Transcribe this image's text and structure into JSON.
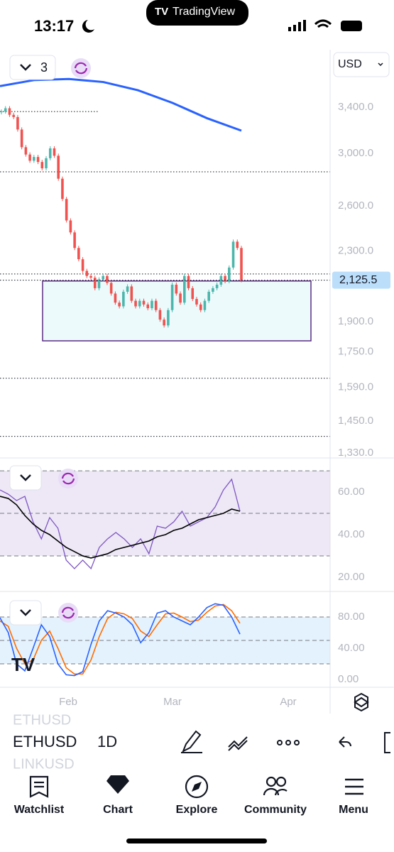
{
  "status_bar": {
    "time": "13:17"
  },
  "header": {
    "brand": "TradingView"
  },
  "controls": {
    "indicator_count": "3",
    "currency": "USD"
  },
  "main_chart": {
    "type": "candlestick",
    "yscale": "log",
    "ylim": [
      1312,
      3974
    ],
    "yticks": [
      {
        "value": 3400,
        "label": "3,400.0"
      },
      {
        "value": 3000,
        "label": "3,000.0"
      },
      {
        "value": 2600,
        "label": "2,600.0"
      },
      {
        "value": 2300,
        "label": "2,300.0"
      },
      {
        "value": 1900,
        "label": "1,900.0"
      },
      {
        "value": 1750,
        "label": "1,750.0"
      },
      {
        "value": 1590,
        "label": "1,590.0"
      },
      {
        "value": 1450,
        "label": "1,450.0"
      },
      {
        "value": 1330,
        "label": "1,330.0"
      }
    ],
    "last_price": {
      "value": 2125.5,
      "label": "2,125.5"
    },
    "up_color": "#4db6ac",
    "down_color": "#ef5350",
    "closes": [
      3360,
      3390,
      3330,
      3310,
      3200,
      3050,
      2990,
      2940,
      2970,
      2930,
      2880,
      2960,
      3040,
      2980,
      2800,
      2650,
      2500,
      2420,
      2320,
      2250,
      2180,
      2150,
      2140,
      2080,
      2130,
      2150,
      2110,
      2050,
      2000,
      1980,
      2060,
      2090,
      2010,
      1980,
      2010,
      1990,
      1970,
      2010,
      1960,
      1910,
      1880,
      1960,
      2100,
      2050,
      2000,
      2150,
      2080,
      2020,
      1990,
      1960,
      2010,
      2060,
      2080,
      2100,
      2150,
      2120,
      2200,
      2360,
      2320,
      2125.5
    ],
    "ma": {
      "color": "#2962ff",
      "values": [
        3600,
        3660,
        3670,
        3640,
        3560,
        3440,
        3300,
        3190
      ]
    },
    "levels": [
      3360,
      2853,
      2162,
      1629,
      1391
    ],
    "box": {
      "color": "#5b2c83",
      "range": [
        1803,
        2121
      ]
    },
    "xticks": [
      "Feb",
      "Mar",
      "Apr"
    ]
  },
  "rsi_panel": {
    "ylim": [
      13.3,
      75.7
    ],
    "yticks": [
      {
        "value": 60,
        "label": "60.00"
      },
      {
        "value": 40,
        "label": "40.00"
      },
      {
        "value": 20,
        "label": "20.00"
      }
    ],
    "bands": [
      70,
      50,
      30
    ],
    "rsi": {
      "color": "#7e57c2",
      "values": [
        61,
        59,
        56,
        58,
        46,
        38,
        48,
        43,
        28,
        24,
        28,
        24,
        34,
        38,
        41,
        38,
        34,
        38,
        31,
        44,
        43,
        46,
        51,
        44,
        46,
        48,
        53,
        61,
        66,
        51
      ]
    },
    "ma": {
      "color": "#000000",
      "values": [
        58,
        57,
        54,
        49,
        45,
        42,
        40,
        37,
        34,
        32,
        30,
        29,
        30,
        31,
        33,
        34,
        35,
        36,
        37,
        39,
        40,
        42,
        43,
        45,
        47,
        48,
        49,
        50,
        52,
        51
      ]
    }
  },
  "stoch_panel": {
    "ylim": [
      -10,
      111.8
    ],
    "yticks": [
      {
        "value": 80,
        "label": "80.00"
      },
      {
        "value": 40,
        "label": "40.00"
      },
      {
        "value": 0,
        "label": "0.00"
      }
    ],
    "bands": [
      80,
      50,
      20
    ],
    "k": {
      "color": "#2962ff",
      "values": [
        79,
        60,
        20,
        11,
        40,
        70,
        55,
        20,
        6,
        5,
        10,
        45,
        75,
        88,
        85,
        80,
        70,
        47,
        60,
        85,
        88,
        80,
        75,
        70,
        80,
        92,
        97,
        95,
        80,
        58
      ]
    },
    "d": {
      "color": "#ff6d00",
      "values": [
        75,
        68,
        40,
        20,
        25,
        50,
        62,
        40,
        15,
        7,
        7,
        25,
        55,
        78,
        86,
        84,
        78,
        62,
        55,
        70,
        84,
        85,
        80,
        74,
        76,
        86,
        94,
        96,
        88,
        72
      ]
    }
  },
  "toolbar": {
    "symbol": "ETHUSD",
    "interval": "1D",
    "ghost_symbols": [
      "ETHUSD",
      "LINKUSD"
    ]
  },
  "nav": [
    "Watchlist",
    "Chart",
    "Explore",
    "Community",
    "Menu"
  ]
}
